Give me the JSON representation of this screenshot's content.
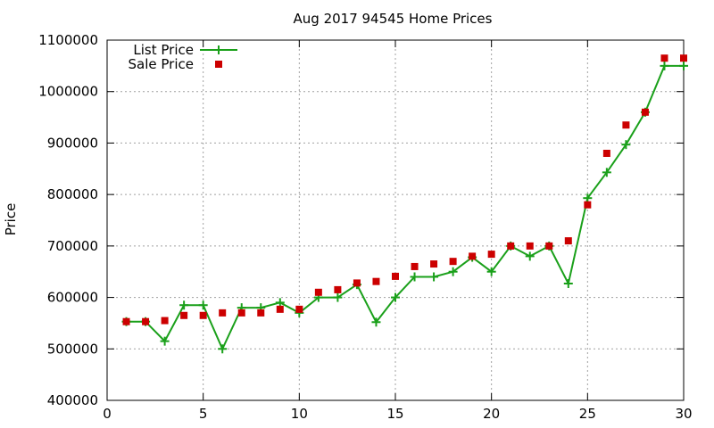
{
  "chart_data": {
    "type": "line",
    "title": "Aug 2017 94545 Home Prices",
    "xlabel": "",
    "ylabel": "Price",
    "xlim": [
      0,
      30
    ],
    "ylim": [
      400000,
      1100000
    ],
    "xticks": [
      0,
      5,
      10,
      15,
      20,
      25,
      30
    ],
    "yticks": [
      400000,
      500000,
      600000,
      700000,
      800000,
      900000,
      1000000,
      1100000
    ],
    "grid": true,
    "legend_position": "top-left",
    "series": [
      {
        "name": "List Price",
        "style": "line-with-plus-markers",
        "color": "#1aa01a",
        "x": [
          1,
          2,
          3,
          4,
          5,
          6,
          7,
          8,
          9,
          10,
          11,
          12,
          13,
          14,
          15,
          16,
          17,
          18,
          19,
          20,
          21,
          22,
          23,
          24,
          25,
          26,
          27,
          28,
          29,
          30
        ],
        "y": [
          553000,
          553000,
          515000,
          585000,
          585000,
          500000,
          580000,
          580000,
          590000,
          570000,
          600000,
          600000,
          625000,
          552000,
          600000,
          640000,
          640000,
          650000,
          678000,
          650000,
          700000,
          680000,
          700000,
          627000,
          793000,
          843000,
          897000,
          960000,
          1050000,
          1050000
        ]
      },
      {
        "name": "Sale Price",
        "style": "square-markers",
        "color": "#cc0000",
        "x": [
          1,
          2,
          3,
          4,
          5,
          6,
          7,
          8,
          9,
          10,
          11,
          12,
          13,
          14,
          15,
          16,
          17,
          18,
          19,
          20,
          21,
          22,
          23,
          24,
          25,
          26,
          27,
          28,
          29,
          30
        ],
        "y": [
          553000,
          553000,
          555000,
          565000,
          565000,
          570000,
          570000,
          570000,
          577000,
          577000,
          610000,
          615000,
          628000,
          631000,
          641000,
          660000,
          665000,
          670000,
          680000,
          684000,
          700000,
          700000,
          700000,
          710000,
          780000,
          880000,
          935000,
          960000,
          1065000,
          1065000
        ]
      }
    ]
  }
}
